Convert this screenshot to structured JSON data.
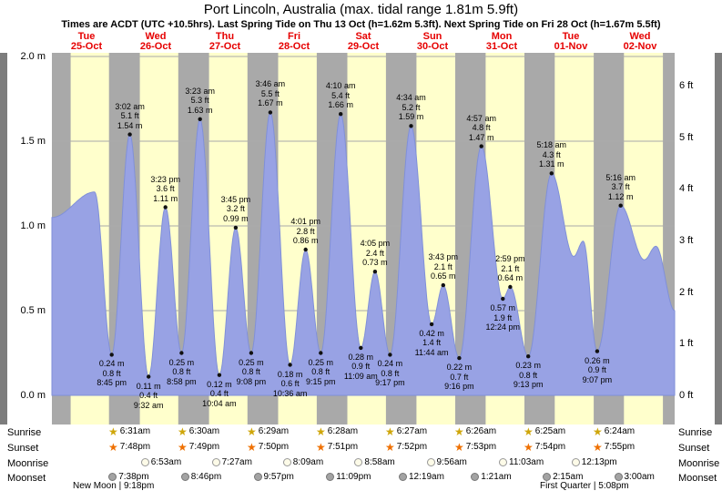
{
  "header": {
    "title": "Port Lincoln, Australia (max. tidal range 1.81m 5.9ft)",
    "subtitle": "Times are ACDT (UTC +10.5hrs). Last Spring Tide on Thu 13 Oct (h=1.62m 5.3ft). Next Spring Tide on Fri 28 Oct (h=1.67m 5.5ft)"
  },
  "chart_data": {
    "type": "area",
    "title": "Tide height forecast for Port Lincoln, Australia",
    "xlabel": "",
    "ylabel_left": "meters",
    "ylabel_right": "feet",
    "ylim_m": [
      0.0,
      2.0
    ],
    "grid_m": [
      0.0,
      0.5,
      1.0,
      1.5,
      2.0
    ],
    "y_ticks_m": [
      {
        "label": "2.0 m",
        "m": 2.0
      },
      {
        "label": "1.5 m",
        "m": 1.5
      },
      {
        "label": "1.0 m",
        "m": 1.0
      },
      {
        "label": "0.5 m",
        "m": 0.5
      },
      {
        "label": "0.0 m",
        "m": 0.0
      }
    ],
    "y_ticks_ft": [
      {
        "label": "6 ft",
        "ft": 6
      },
      {
        "label": "5 ft",
        "ft": 5
      },
      {
        "label": "4 ft",
        "ft": 4
      },
      {
        "label": "3 ft",
        "ft": 3
      },
      {
        "label": "2 ft",
        "ft": 2
      },
      {
        "label": "1 ft",
        "ft": 1
      },
      {
        "label": "0 ft",
        "ft": 0
      }
    ],
    "days": [
      {
        "weekday": "Tue",
        "date": "25-Oct"
      },
      {
        "weekday": "Wed",
        "date": "26-Oct"
      },
      {
        "weekday": "Thu",
        "date": "27-Oct"
      },
      {
        "weekday": "Fri",
        "date": "28-Oct"
      },
      {
        "weekday": "Sat",
        "date": "29-Oct"
      },
      {
        "weekday": "Sun",
        "date": "30-Oct"
      },
      {
        "weekday": "Mon",
        "date": "31-Oct"
      },
      {
        "weekday": "Tue",
        "date": "01-Nov"
      },
      {
        "weekday": "Wed",
        "date": "02-Nov"
      }
    ],
    "curve": [
      {
        "t": 0.0,
        "h": 1.05,
        "type": "anchor"
      },
      {
        "t": 14.8,
        "h": 1.2,
        "type": "anchor"
      },
      {
        "t": 20.75,
        "h": 0.24,
        "type": "low",
        "time": "8:45 pm",
        "ft": "0.8 ft",
        "m": "0.24 m"
      },
      {
        "t": 27.03,
        "h": 1.54,
        "type": "high",
        "time": "3:02 am",
        "ft": "5.1 ft",
        "m": "1.54 m"
      },
      {
        "t": 33.53,
        "h": 0.11,
        "type": "low",
        "time": "9:32 am",
        "ft": "0.4 ft",
        "m": "0.11 m"
      },
      {
        "t": 39.38,
        "h": 1.11,
        "type": "high",
        "time": "3:23 pm",
        "ft": "3.6 ft",
        "m": "1.11 m"
      },
      {
        "t": 44.97,
        "h": 0.25,
        "type": "low",
        "time": "8:58 pm",
        "ft": "0.8 ft",
        "m": "0.25 m"
      },
      {
        "t": 51.38,
        "h": 1.63,
        "type": "high",
        "time": "3:23 am",
        "ft": "5.3 ft",
        "m": "1.63 m"
      },
      {
        "t": 58.07,
        "h": 0.12,
        "type": "low",
        "time": "10:04 am",
        "ft": "0.4 ft",
        "m": "0.12 m"
      },
      {
        "t": 63.75,
        "h": 0.99,
        "type": "high",
        "time": "3:45 pm",
        "ft": "3.2 ft",
        "m": "0.99 m"
      },
      {
        "t": 69.13,
        "h": 0.25,
        "type": "low",
        "time": "9:08 pm",
        "ft": "0.8 ft",
        "m": "0.25 m"
      },
      {
        "t": 75.77,
        "h": 1.67,
        "type": "high",
        "time": "3:46 am",
        "ft": "5.5 ft",
        "m": "1.67 m"
      },
      {
        "t": 82.6,
        "h": 0.18,
        "type": "low",
        "time": "10:36 am",
        "ft": "0.6 ft",
        "m": "0.18 m"
      },
      {
        "t": 88.02,
        "h": 0.86,
        "type": "high",
        "time": "4:01 pm",
        "ft": "2.8 ft",
        "m": "0.86 m"
      },
      {
        "t": 93.25,
        "h": 0.25,
        "type": "low",
        "time": "9:15 pm",
        "ft": "0.8 ft",
        "m": "0.25 m"
      },
      {
        "t": 100.17,
        "h": 1.66,
        "type": "high",
        "time": "4:10 am",
        "ft": "5.4 ft",
        "m": "1.66 m"
      },
      {
        "t": 107.15,
        "h": 0.28,
        "type": "low",
        "time": "11:09 am",
        "ft": "0.9 ft",
        "m": "0.28 m"
      },
      {
        "t": 112.08,
        "h": 0.73,
        "type": "high",
        "time": "4:05 pm",
        "ft": "2.4 ft",
        "m": "0.73 m"
      },
      {
        "t": 117.28,
        "h": 0.24,
        "type": "low",
        "time": "9:17 pm",
        "ft": "0.8 ft",
        "m": "0.24 m"
      },
      {
        "t": 124.57,
        "h": 1.59,
        "type": "high",
        "time": "4:34 am",
        "ft": "5.2 ft",
        "m": "1.59 m"
      },
      {
        "t": 131.73,
        "h": 0.42,
        "type": "low",
        "time": "11:44 am",
        "ft": "1.4 ft",
        "m": "0.42 m"
      },
      {
        "t": 135.72,
        "h": 0.65,
        "type": "high",
        "time": "3:43 pm",
        "ft": "2.1 ft",
        "m": "0.65 m"
      },
      {
        "t": 141.27,
        "h": 0.22,
        "type": "low",
        "time": "9:16 pm",
        "ft": "0.7 ft",
        "m": "0.22 m"
      },
      {
        "t": 148.95,
        "h": 1.47,
        "type": "high",
        "time": "4:57 am",
        "ft": "4.8 ft",
        "m": "1.47 m"
      },
      {
        "t": 156.4,
        "h": 0.57,
        "type": "low",
        "time": "12:24 pm",
        "ft": "1.9 ft",
        "m": "0.57 m"
      },
      {
        "t": 158.98,
        "h": 0.64,
        "type": "high",
        "time": "2:59 pm",
        "ft": "2.1 ft",
        "m": "0.64 m"
      },
      {
        "t": 165.22,
        "h": 0.23,
        "type": "low",
        "time": "9:13 pm",
        "ft": "0.8 ft",
        "m": "0.23 m"
      },
      {
        "t": 173.3,
        "h": 1.31,
        "type": "high",
        "time": "5:18 am",
        "ft": "4.3 ft",
        "m": "1.31 m"
      },
      {
        "t": 181.0,
        "h": 0.82,
        "type": "anchor"
      },
      {
        "t": 184.3,
        "h": 0.91,
        "type": "anchor"
      },
      {
        "t": 189.12,
        "h": 0.26,
        "type": "low",
        "time": "9:07 pm",
        "ft": "0.9 ft",
        "m": "0.26 m"
      },
      {
        "t": 197.27,
        "h": 1.12,
        "type": "high",
        "time": "5:16 am",
        "ft": "3.7 ft",
        "m": "1.12 m"
      },
      {
        "t": 205.5,
        "h": 0.8,
        "type": "anchor"
      },
      {
        "t": 209.5,
        "h": 0.88,
        "type": "anchor"
      },
      {
        "t": 216.0,
        "h": 0.5,
        "type": "anchor"
      }
    ],
    "colors": {
      "day": "#ffffcc",
      "night": "#a9a9a9",
      "water": "#98a2e4",
      "water_edge": "#8090d8",
      "grid": "#aaaaaa",
      "day_label": "#e60000"
    }
  },
  "astro": {
    "rows": [
      {
        "key": "sunrise",
        "label": "Sunrise",
        "items": [
          {
            "day": 1,
            "time": "6:31am"
          },
          {
            "day": 2,
            "time": "6:30am"
          },
          {
            "day": 3,
            "time": "6:29am"
          },
          {
            "day": 4,
            "time": "6:28am"
          },
          {
            "day": 5,
            "time": "6:27am"
          },
          {
            "day": 6,
            "time": "6:26am"
          },
          {
            "day": 7,
            "time": "6:25am"
          },
          {
            "day": 8,
            "time": "6:24am"
          }
        ]
      },
      {
        "key": "sunset",
        "label": "Sunset",
        "items": [
          {
            "day": 0,
            "time": "7:48pm"
          },
          {
            "day": 1,
            "time": "7:49pm"
          },
          {
            "day": 2,
            "time": "7:50pm"
          },
          {
            "day": 3,
            "time": "7:51pm"
          },
          {
            "day": 4,
            "time": "7:52pm"
          },
          {
            "day": 5,
            "time": "7:53pm"
          },
          {
            "day": 6,
            "time": "7:54pm"
          },
          {
            "day": 7,
            "time": "7:55pm"
          }
        ]
      },
      {
        "key": "moonrise",
        "label": "Moonrise",
        "items": [
          {
            "day": 1,
            "time": "6:53am"
          },
          {
            "day": 2,
            "time": "7:27am"
          },
          {
            "day": 3,
            "time": "8:09am"
          },
          {
            "day": 4,
            "time": "8:58am"
          },
          {
            "day": 5,
            "time": "9:56am"
          },
          {
            "day": 6,
            "time": "11:03am"
          },
          {
            "day": 7,
            "time": "12:13pm"
          }
        ]
      },
      {
        "key": "moonset",
        "label": "Moonset",
        "items": [
          {
            "day": 0,
            "time": "7:38pm"
          },
          {
            "day": 1,
            "time": "8:46pm"
          },
          {
            "day": 2,
            "time": "9:57pm"
          },
          {
            "day": 3,
            "time": "11:09pm"
          },
          {
            "day": 5,
            "time": "12:19am"
          },
          {
            "day": 6,
            "time": "1:21am"
          },
          {
            "day": 7,
            "time": "2:15am"
          },
          {
            "day": 8,
            "time": "3:00am"
          }
        ]
      }
    ]
  },
  "footer": {
    "new_moon": "New Moon | 9:18pm",
    "first_quarter": "First Quarter | 5:08pm"
  }
}
